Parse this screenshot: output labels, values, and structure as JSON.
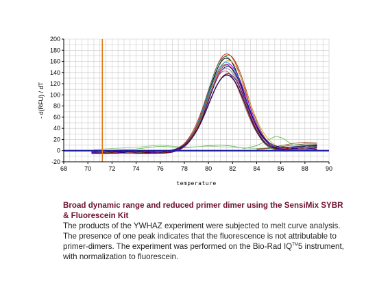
{
  "chart_data": {
    "type": "line",
    "title": "",
    "xlabel": "temperature",
    "ylabel": "- d(RFU) / dT",
    "xlim": [
      68,
      90
    ],
    "ylim": [
      -20,
      200
    ],
    "x_ticks": [
      68,
      70,
      72,
      74,
      76,
      78,
      80,
      82,
      84,
      86,
      88,
      90
    ],
    "y_ticks": [
      -20,
      0,
      20,
      40,
      60,
      80,
      100,
      120,
      140,
      160,
      180,
      200
    ],
    "grid": true,
    "vertical_marker_x": 71.2,
    "threshold_y": 0,
    "series": [
      {
        "peak_x": 81.5,
        "peak_y": 178,
        "width": 2.0,
        "color": "#cc2020"
      },
      {
        "peak_x": 81.6,
        "peak_y": 174,
        "width": 2.05,
        "color": "#8b4513"
      },
      {
        "peak_x": 81.4,
        "peak_y": 170,
        "width": 1.95,
        "color": "#2e8b57"
      },
      {
        "peak_x": 81.5,
        "peak_y": 167,
        "width": 2.0,
        "color": "#000000"
      },
      {
        "peak_x": 81.7,
        "peak_y": 165,
        "width": 2.05,
        "color": "#daa520"
      },
      {
        "peak_x": 81.5,
        "peak_y": 163,
        "width": 2.0,
        "color": "#1e90ff"
      },
      {
        "peak_x": 81.6,
        "peak_y": 160,
        "width": 2.0,
        "color": "#8a2be2"
      },
      {
        "peak_x": 81.4,
        "peak_y": 158,
        "width": 1.95,
        "color": "#556b2f"
      },
      {
        "peak_x": 81.5,
        "peak_y": 155,
        "width": 2.0,
        "color": "#ff1493"
      },
      {
        "peak_x": 81.6,
        "peak_y": 152,
        "width": 2.05,
        "color": "#00008b"
      },
      {
        "peak_x": 81.5,
        "peak_y": 150,
        "width": 2.0,
        "color": "#708090"
      },
      {
        "peak_x": 81.4,
        "peak_y": 147,
        "width": 1.95,
        "color": "#a0522d"
      },
      {
        "peak_x": 81.6,
        "peak_y": 143,
        "width": 2.0,
        "color": "#4b0082"
      },
      {
        "peak_x": 81.5,
        "peak_y": 140,
        "width": 2.0,
        "color": "#800000"
      },
      {
        "peak_x": 81.5,
        "peak_y": 137,
        "width": 2.0,
        "color": "#191970"
      }
    ],
    "baseline_series": [
      {
        "color": "#5fba4a",
        "points": [
          [
            70.5,
            0
          ],
          [
            72,
            1
          ],
          [
            74,
            3
          ],
          [
            76,
            8
          ],
          [
            78,
            5
          ],
          [
            80,
            9
          ],
          [
            81,
            10
          ],
          [
            82,
            8
          ],
          [
            83,
            4
          ],
          [
            84,
            9
          ],
          [
            85,
            20
          ],
          [
            85.6,
            26
          ],
          [
            86.2,
            22
          ],
          [
            87,
            10
          ],
          [
            88,
            9
          ],
          [
            89,
            7
          ]
        ]
      },
      {
        "color": "#9ac48c",
        "points": [
          [
            70.5,
            2
          ],
          [
            72,
            4
          ],
          [
            74,
            6
          ],
          [
            76,
            10
          ],
          [
            78,
            6
          ],
          [
            80,
            8
          ],
          [
            82,
            6
          ],
          [
            84,
            4
          ],
          [
            86,
            6
          ],
          [
            88,
            8
          ],
          [
            89,
            8
          ]
        ]
      },
      {
        "color": "#a0522d",
        "points": [
          [
            84,
            3
          ],
          [
            85,
            5
          ],
          [
            86,
            9
          ],
          [
            87,
            13
          ],
          [
            88,
            15
          ],
          [
            89,
            14
          ]
        ]
      },
      {
        "color": "#556b2f",
        "points": [
          [
            84,
            2
          ],
          [
            85,
            4
          ],
          [
            86,
            7
          ],
          [
            87,
            10
          ],
          [
            88,
            12
          ],
          [
            89,
            12
          ]
        ]
      }
    ]
  },
  "caption": {
    "title": "Broad dynamic range and reduced primer dimer using the SensiMix SYBR & Fluorescein Kit",
    "body_before_tm": "The products of the YWHAZ experiment were subjected to melt curve analysis. The presence of one peak indicates that the fluorescence is not attributable to primer-dimers. The experiment was performed on the Bio-Rad IQ",
    "tm": "TM",
    "body_after_tm": "5 instrument, with normalization to fluorescein."
  }
}
